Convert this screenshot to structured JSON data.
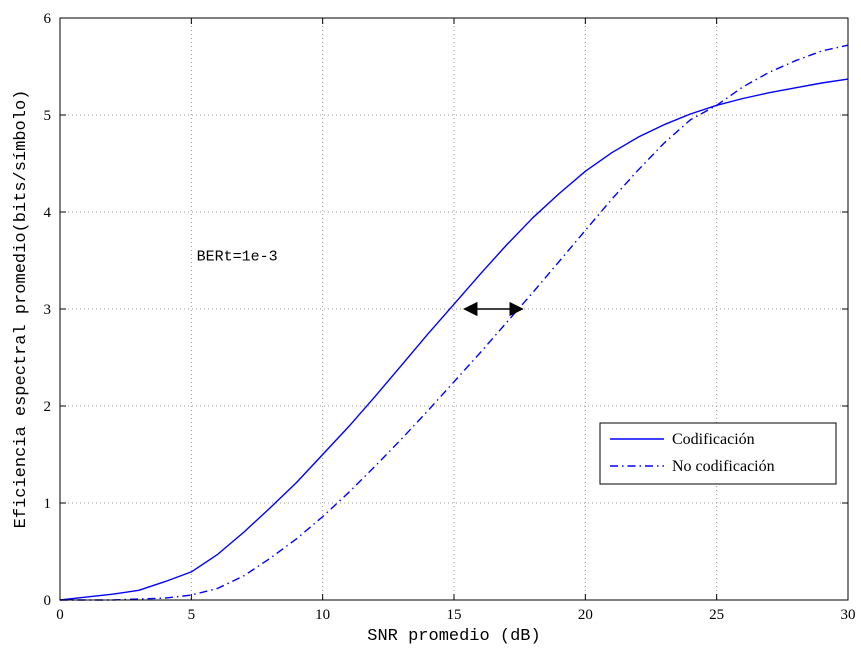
{
  "chart_data": {
    "type": "line",
    "title": "",
    "xlabel": "SNR promedio (dB)",
    "ylabel": "Eficiencia espectral promedio(bits/símbolo)",
    "xlim": [
      0,
      30
    ],
    "ylim": [
      0,
      6
    ],
    "xticks": [
      0,
      5,
      10,
      15,
      20,
      25,
      30
    ],
    "yticks": [
      0,
      1,
      2,
      3,
      4,
      5,
      6
    ],
    "grid": true,
    "legend_position": "lower-right",
    "annotation": {
      "text": "BERt=1e-3",
      "x": 5.2,
      "y": 3.5
    },
    "arrow": {
      "from": [
        15.4,
        3.0
      ],
      "to": [
        17.6,
        3.0
      ]
    },
    "colors": {
      "line": "#0000ff",
      "grid": "#9a9a9a",
      "axes": "#000000"
    },
    "series": [
      {
        "name": "Codificación",
        "style": "solid",
        "x": [
          0,
          1,
          2,
          3,
          4,
          5,
          6,
          7,
          8,
          9,
          10,
          11,
          12,
          13,
          14,
          15,
          16,
          17,
          18,
          19,
          20,
          21,
          22,
          23,
          24,
          25,
          26,
          27,
          28,
          29,
          30
        ],
        "y": [
          0,
          0.03,
          0.06,
          0.1,
          0.19,
          0.29,
          0.47,
          0.7,
          0.95,
          1.21,
          1.5,
          1.79,
          2.1,
          2.42,
          2.74,
          3.05,
          3.36,
          3.66,
          3.94,
          4.19,
          4.42,
          4.61,
          4.77,
          4.9,
          5.01,
          5.1,
          5.17,
          5.23,
          5.28,
          5.33,
          5.37
        ]
      },
      {
        "name": "No codificación",
        "style": "dashdot",
        "x": [
          0,
          1,
          2,
          3,
          4,
          5,
          6,
          7,
          8,
          9,
          10,
          11,
          12,
          13,
          14,
          15,
          16,
          17,
          18,
          19,
          20,
          21,
          22,
          23,
          24,
          25,
          26,
          27,
          28,
          29,
          30
        ],
        "y": [
          0,
          0,
          0,
          0.01,
          0.02,
          0.05,
          0.12,
          0.25,
          0.43,
          0.63,
          0.86,
          1.11,
          1.38,
          1.66,
          1.95,
          2.25,
          2.55,
          2.86,
          3.17,
          3.49,
          3.81,
          4.13,
          4.43,
          4.71,
          4.95,
          5.1,
          5.29,
          5.44,
          5.56,
          5.66,
          5.72
        ]
      }
    ]
  }
}
